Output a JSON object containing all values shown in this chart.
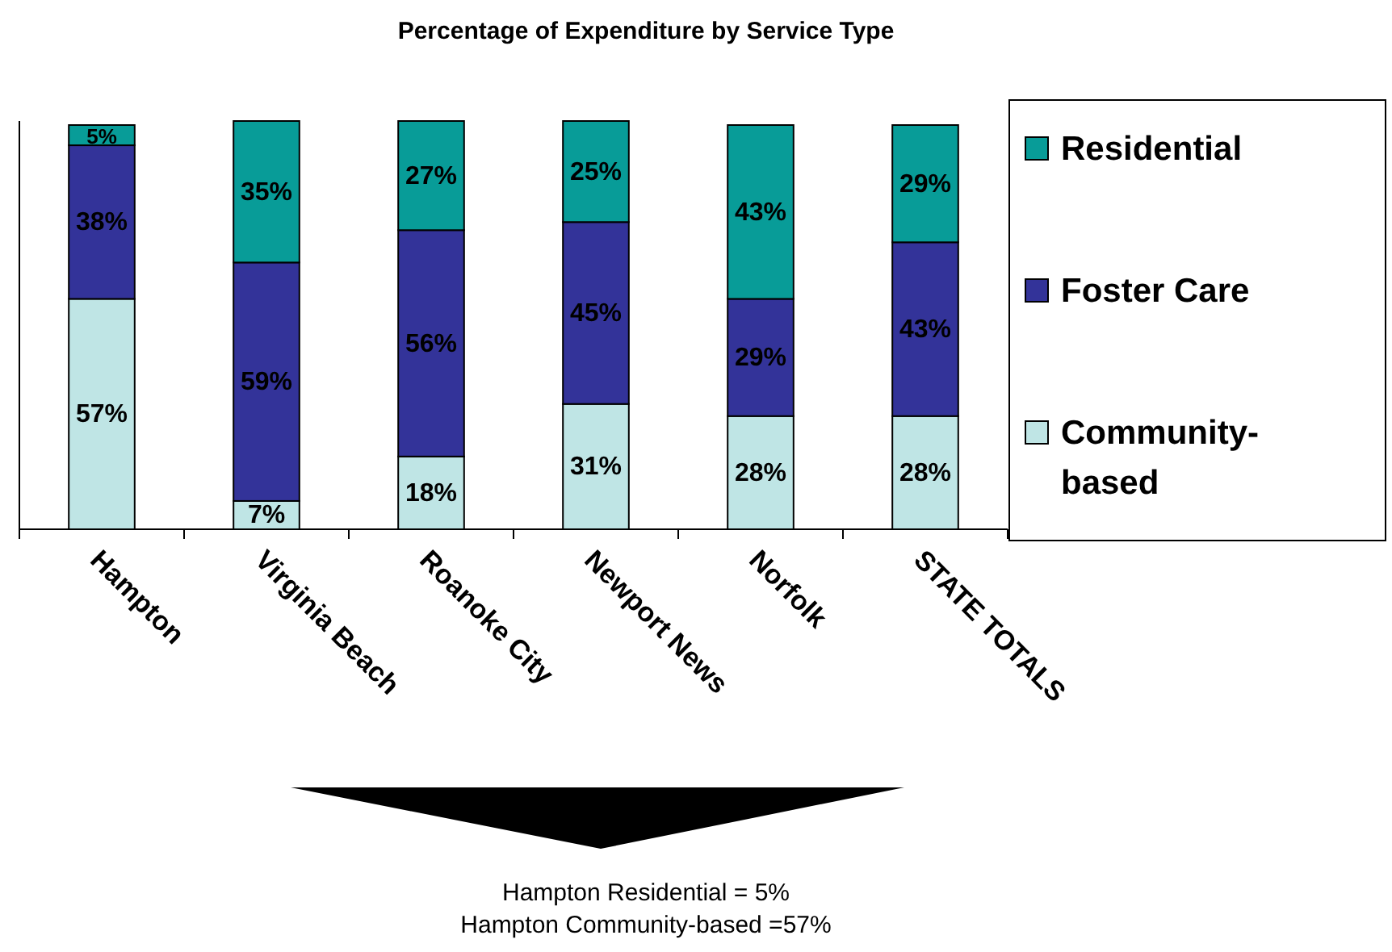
{
  "chart_data": {
    "type": "bar",
    "title": "Percentage of Expenditure by Service Type",
    "categories": [
      "Hampton",
      "Virginia Beach",
      "Roanoke City",
      "Newport News",
      "Norfolk",
      "STATE TOTALS"
    ],
    "stacked": true,
    "legend": "right",
    "series": [
      {
        "name": "Community-based",
        "color": "#bfe5e5",
        "values": [
          57,
          7,
          18,
          31,
          28,
          28
        ],
        "value_labels": [
          "57%",
          "7%",
          "18%",
          "31%",
          "28%",
          "28%"
        ]
      },
      {
        "name": "Foster Care",
        "color": "#333399",
        "values": [
          38,
          59,
          56,
          45,
          29,
          43
        ],
        "value_labels": [
          "38%",
          "59%",
          "56%",
          "45%",
          "29%",
          "43%"
        ]
      },
      {
        "name": "Residential",
        "color": "#089c98",
        "values": [
          5,
          35,
          27,
          25,
          43,
          29
        ],
        "value_labels": [
          "5%",
          "35%",
          "27%",
          "25%",
          "43%",
          "29%"
        ]
      }
    ],
    "annotations": [
      "Hampton Residential = 5%",
      "Hampton Community-based =57%"
    ]
  }
}
